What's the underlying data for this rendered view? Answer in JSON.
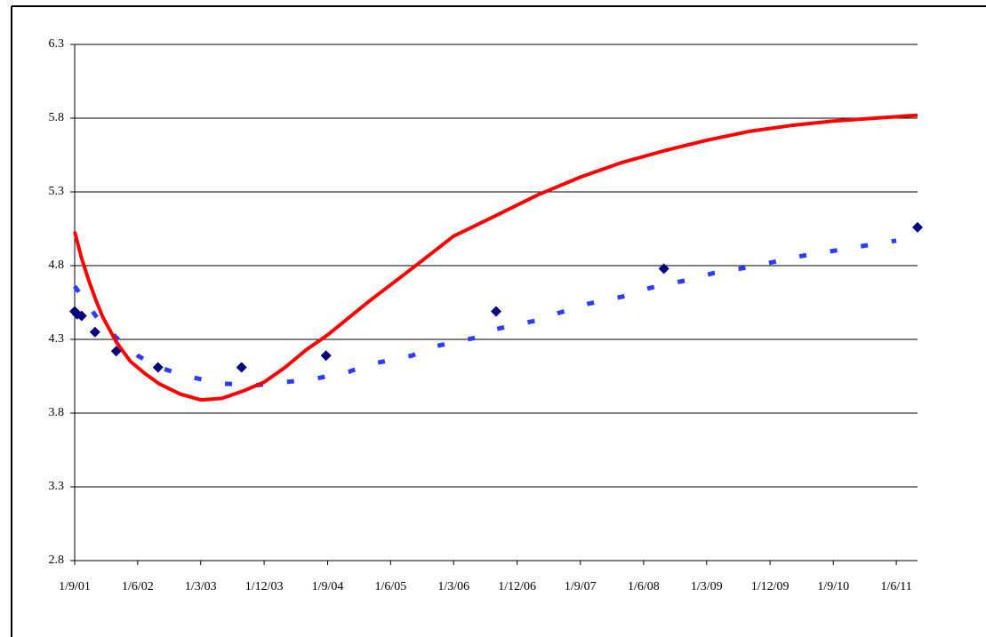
{
  "chart_data": {
    "type": "line",
    "xlim": [
      "2001-09-01",
      "2011-09-01"
    ],
    "xticks": [
      {
        "value": "2001-09-01",
        "label": "1/9/01"
      },
      {
        "value": "2002-06-01",
        "label": "1/6/02"
      },
      {
        "value": "2003-03-01",
        "label": "1/3/03"
      },
      {
        "value": "2003-12-01",
        "label": "1/12/03"
      },
      {
        "value": "2004-09-01",
        "label": "1/9/04"
      },
      {
        "value": "2005-06-01",
        "label": "1/6/05"
      },
      {
        "value": "2006-03-01",
        "label": "1/3/06"
      },
      {
        "value": "2006-12-01",
        "label": "1/12/06"
      },
      {
        "value": "2007-09-01",
        "label": "1/9/07"
      },
      {
        "value": "2008-06-01",
        "label": "1/6/08"
      },
      {
        "value": "2009-03-01",
        "label": "1/3/09"
      },
      {
        "value": "2009-12-01",
        "label": "1/12/09"
      },
      {
        "value": "2010-09-01",
        "label": "1/9/10"
      },
      {
        "value": "2011-06-01",
        "label": "1/6/11"
      }
    ],
    "ylim": [
      2.8,
      6.3
    ],
    "yticks": [
      2.8,
      3.3,
      3.8,
      4.3,
      4.8,
      5.3,
      5.8,
      6.3
    ],
    "grid": true,
    "series": [
      {
        "type": "line",
        "style": "dotted",
        "color": "#2b3bff",
        "x": [
          "2001-09-01",
          "2001-12-01",
          "2002-03-01",
          "2002-06-01",
          "2002-09-01",
          "2003-01-01",
          "2003-06-01",
          "2003-11-01",
          "2004-03-01",
          "2004-07-01",
          "2004-12-01",
          "2005-03-01",
          "2005-09-01",
          "2005-12-01",
          "2006-06-01",
          "2006-09-01",
          "2007-03-01",
          "2007-06-01",
          "2007-10-01",
          "2008-03-01",
          "2008-07-01",
          "2008-12-01",
          "2009-04-01",
          "2009-09-01",
          "2010-01-01",
          "2010-05-01",
          "2010-09-01",
          "2011-02-01",
          "2011-06-01"
        ],
        "values": [
          4.66,
          4.46,
          4.31,
          4.19,
          4.11,
          4.05,
          4.0,
          3.99,
          4.01,
          4.03,
          4.08,
          4.13,
          4.19,
          4.25,
          4.31,
          4.37,
          4.43,
          4.48,
          4.54,
          4.59,
          4.65,
          4.7,
          4.75,
          4.79,
          4.83,
          4.87,
          4.9,
          4.94,
          4.97
        ]
      },
      {
        "type": "line",
        "style": "solid",
        "color": "#ff0000",
        "x": [
          "2001-09-01",
          "2001-10-01",
          "2001-11-01",
          "2001-12-01",
          "2002-01-01",
          "2002-03-01",
          "2002-05-01",
          "2002-07-01",
          "2002-09-01",
          "2002-12-01",
          "2003-03-01",
          "2003-06-01",
          "2003-09-01",
          "2003-12-01",
          "2004-03-01",
          "2004-06-01",
          "2004-09-01",
          "2005-03-01",
          "2005-09-01",
          "2006-03-01",
          "2006-09-01",
          "2007-03-01",
          "2007-09-01",
          "2008-03-01",
          "2008-09-01",
          "2009-03-01",
          "2009-09-01",
          "2010-03-01",
          "2010-09-01",
          "2011-03-01",
          "2011-09-01"
        ],
        "values": [
          5.03,
          4.85,
          4.7,
          4.57,
          4.45,
          4.28,
          4.15,
          4.07,
          4.0,
          3.93,
          3.89,
          3.9,
          3.95,
          4.01,
          4.11,
          4.23,
          4.33,
          4.56,
          4.78,
          5.0,
          5.14,
          5.28,
          5.4,
          5.5,
          5.58,
          5.65,
          5.71,
          5.75,
          5.78,
          5.8,
          5.82
        ]
      },
      {
        "type": "scatter",
        "color": "#000080",
        "x": [
          "2001-09-01",
          "2001-09-12",
          "2001-10-01",
          "2001-11-28",
          "2002-02-28",
          "2002-08-28",
          "2003-08-25",
          "2004-08-25",
          "2006-09-01",
          "2008-08-28",
          "2011-09-01"
        ],
        "values": [
          4.49,
          4.47,
          4.46,
          4.35,
          4.22,
          4.11,
          4.11,
          4.19,
          4.49,
          4.78,
          5.06
        ]
      }
    ]
  }
}
